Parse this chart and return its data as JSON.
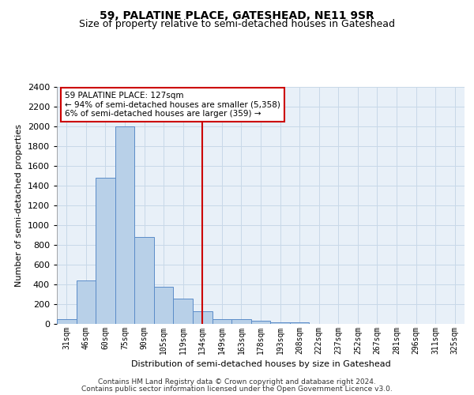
{
  "title_line1": "59, PALATINE PLACE, GATESHEAD, NE11 9SR",
  "title_line2": "Size of property relative to semi-detached houses in Gateshead",
  "xlabel": "Distribution of semi-detached houses by size in Gateshead",
  "ylabel": "Number of semi-detached properties",
  "bar_labels": [
    "31sqm",
    "46sqm",
    "60sqm",
    "75sqm",
    "90sqm",
    "105sqm",
    "119sqm",
    "134sqm",
    "149sqm",
    "163sqm",
    "178sqm",
    "193sqm",
    "208sqm",
    "222sqm",
    "237sqm",
    "252sqm",
    "267sqm",
    "281sqm",
    "296sqm",
    "311sqm",
    "325sqm"
  ],
  "bar_values": [
    45,
    440,
    1480,
    2000,
    880,
    375,
    255,
    130,
    45,
    45,
    30,
    20,
    15,
    0,
    0,
    0,
    0,
    0,
    0,
    0,
    0
  ],
  "bar_color": "#b8d0e8",
  "bar_edge_color": "#5b8cc8",
  "annotation_text_line1": "59 PALATINE PLACE: 127sqm",
  "annotation_text_line2": "← 94% of semi-detached houses are smaller (5,358)",
  "annotation_text_line3": "6% of semi-detached houses are larger (359) →",
  "annotation_box_facecolor": "#ffffff",
  "annotation_box_edgecolor": "#cc0000",
  "vline_color": "#cc0000",
  "vline_x": 7.0,
  "ylim": [
    0,
    2400
  ],
  "yticks": [
    0,
    200,
    400,
    600,
    800,
    1000,
    1200,
    1400,
    1600,
    1800,
    2000,
    2200,
    2400
  ],
  "grid_color": "#c8d8e8",
  "bg_color": "#e8f0f8",
  "footer_line1": "Contains HM Land Registry data © Crown copyright and database right 2024.",
  "footer_line2": "Contains public sector information licensed under the Open Government Licence v3.0."
}
